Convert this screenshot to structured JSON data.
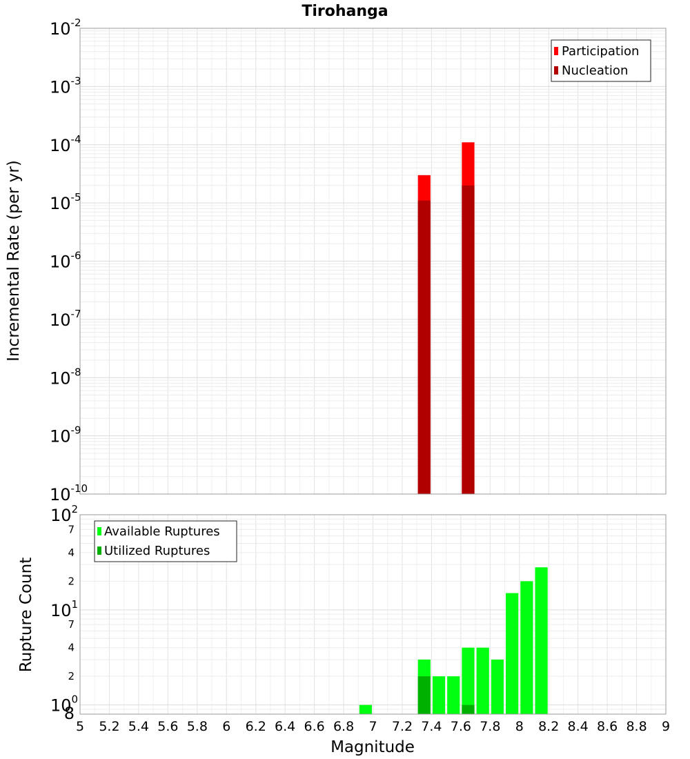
{
  "chart_data": [
    {
      "type": "bar",
      "title": "Tirohanga",
      "ylabel": "Incremental Rate (per yr)",
      "yscale": "log",
      "ylim": [
        1e-10,
        0.01
      ],
      "xlim": [
        5,
        9
      ],
      "bin_width": 0.1,
      "grid": true,
      "legend_position": "top-right",
      "series": [
        {
          "name": "Participation",
          "color": "#ff0000",
          "x": [
            7.35,
            7.65
          ],
          "values": [
            3e-05,
            0.00011
          ]
        },
        {
          "name": "Nucleation",
          "color": "#b00000",
          "x": [
            7.35,
            7.65
          ],
          "values": [
            1.1e-05,
            2e-05
          ]
        }
      ],
      "y_decade_labels": [
        {
          "base": "10",
          "exp": "-10",
          "value": 1e-10
        },
        {
          "base": "10",
          "exp": "-9",
          "value": 1e-09
        },
        {
          "base": "10",
          "exp": "-8",
          "value": 1e-08
        },
        {
          "base": "10",
          "exp": "-7",
          "value": 1e-07
        },
        {
          "base": "10",
          "exp": "-6",
          "value": 1e-06
        },
        {
          "base": "10",
          "exp": "-5",
          "value": 1e-05
        },
        {
          "base": "10",
          "exp": "-4",
          "value": 0.0001
        },
        {
          "base": "10",
          "exp": "-3",
          "value": 0.001
        },
        {
          "base": "10",
          "exp": "-2",
          "value": 0.01
        }
      ]
    },
    {
      "type": "bar",
      "ylabel": "Rupture Count",
      "xlabel": "Magnitude",
      "yscale": "log",
      "ylim": [
        0.8,
        100
      ],
      "xlim": [
        5,
        9
      ],
      "bin_width": 0.1,
      "grid": true,
      "legend_position": "top-left",
      "series": [
        {
          "name": "Available Ruptures",
          "color": "#00ff11",
          "x": [
            6.95,
            7.35,
            7.45,
            7.55,
            7.65,
            7.75,
            7.85,
            7.95,
            8.05,
            8.15
          ],
          "values": [
            1,
            3,
            2,
            2,
            4,
            4,
            3,
            15,
            20,
            28
          ]
        },
        {
          "name": "Utilized Ruptures",
          "color": "#00b000",
          "x": [
            7.35,
            7.65
          ],
          "values": [
            2,
            1
          ]
        }
      ],
      "y_decade_labels": [
        {
          "base": "10",
          "exp": "0",
          "value": 1
        },
        {
          "base": "10",
          "exp": "1",
          "value": 10
        },
        {
          "base": "10",
          "exp": "2",
          "value": 100
        }
      ],
      "y_minor_labels": [
        "2",
        "4",
        "7",
        "2",
        "4",
        "7",
        "8"
      ],
      "y_minor_values": [
        2,
        4,
        7,
        20,
        40,
        70,
        0.8
      ],
      "x_ticks": [
        "5",
        "5.2",
        "5.4",
        "5.6",
        "5.8",
        "6",
        "6.2",
        "6.4",
        "6.6",
        "6.8",
        "7",
        "7.2",
        "7.4",
        "7.6",
        "7.8",
        "8",
        "8.2",
        "8.4",
        "8.6",
        "8.8",
        "9"
      ]
    }
  ]
}
